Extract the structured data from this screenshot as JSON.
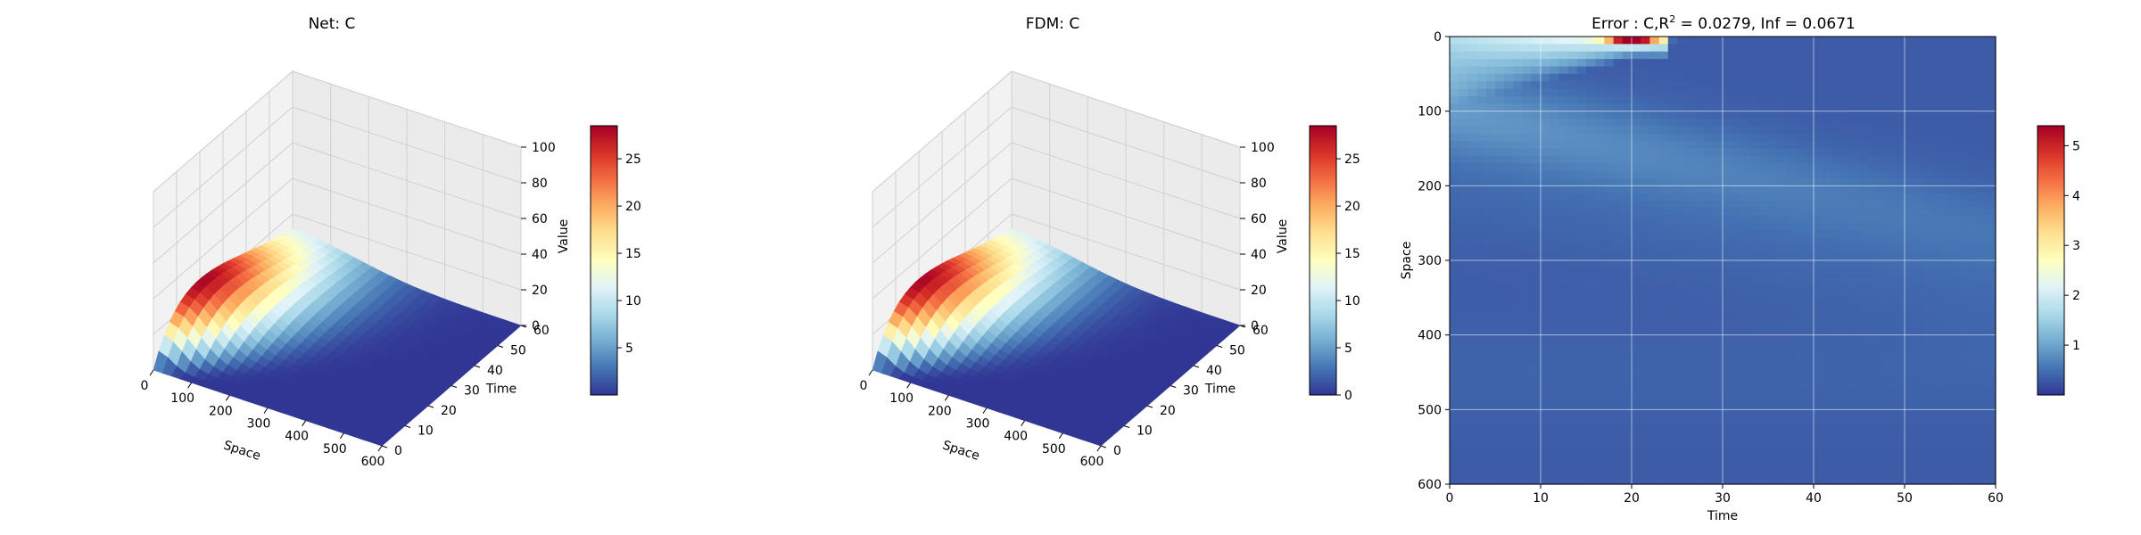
{
  "chart_data": [
    {
      "type": "surface3d",
      "title": "Net: C",
      "xlabel": "Space",
      "ylabel": "Time",
      "zlabel": "Value",
      "xticks": [
        "0",
        "100",
        "200",
        "300",
        "400",
        "500",
        "600"
      ],
      "yticks": [
        "0",
        "10",
        "20",
        "30",
        "40",
        "50",
        "60"
      ],
      "zticks": [
        "0",
        "20",
        "40",
        "60",
        "80",
        "100"
      ],
      "xlim": [
        0,
        600
      ],
      "ylim": [
        0,
        60
      ],
      "zlim": [
        0,
        100
      ],
      "peak_value": 28.5,
      "peak_space": 0,
      "peak_time": 20,
      "colormap": "RdYlBu_r",
      "colorbar": {
        "ticks": [
          "5",
          "10",
          "15",
          "20",
          "25"
        ],
        "min": 0,
        "max": 28.5
      }
    },
    {
      "type": "surface3d",
      "title": "FDM: C",
      "xlabel": "Space",
      "ylabel": "Time",
      "zlabel": "Value",
      "xticks": [
        "0",
        "100",
        "200",
        "300",
        "400",
        "500",
        "600"
      ],
      "yticks": [
        "0",
        "10",
        "20",
        "30",
        "40",
        "50",
        "60"
      ],
      "zticks": [
        "0",
        "20",
        "40",
        "60",
        "80",
        "100"
      ],
      "xlim": [
        0,
        600
      ],
      "ylim": [
        0,
        60
      ],
      "zlim": [
        0,
        100
      ],
      "peak_value": 28.5,
      "peak_space": 0,
      "peak_time": 20,
      "colormap": "RdYlBu_r",
      "colorbar": {
        "ticks": [
          "0",
          "5",
          "10",
          "15",
          "20",
          "25"
        ],
        "min": 0,
        "max": 28.5
      }
    },
    {
      "type": "heatmap",
      "title_prefix": "Error : C,",
      "title_r2": "R",
      "title_r2_sup": "2",
      "title_suffix": " = 0.0279, Inf = 0.0671",
      "xlabel": "Time",
      "ylabel": "Space",
      "xticks": [
        "0",
        "10",
        "20",
        "30",
        "40",
        "50",
        "60"
      ],
      "yticks": [
        "0",
        "100",
        "200",
        "300",
        "400",
        "500",
        "600"
      ],
      "xlim": [
        0,
        60
      ],
      "ylim": [
        600,
        0
      ],
      "grid": true,
      "colormap": "RdYlBu_r",
      "max_error": 5.4,
      "max_error_time": 20,
      "max_error_space": 0,
      "colorbar": {
        "ticks": [
          "1",
          "2",
          "3",
          "4",
          "5"
        ],
        "min": 0,
        "max": 5.4
      }
    }
  ]
}
